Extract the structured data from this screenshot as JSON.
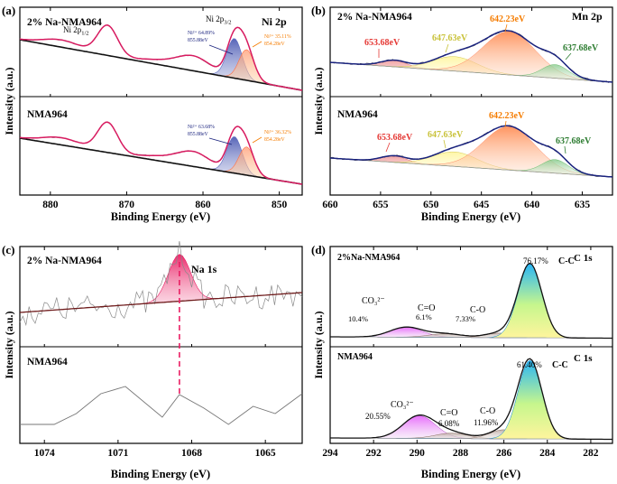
{
  "chart_data": [
    {
      "type": "line",
      "panel": "(a)",
      "title": "Ni 2p",
      "xlabel": "Binding Energy (eV)",
      "ylabel": "Intensity (a.u.)",
      "xlim": [
        884,
        847
      ],
      "xticks": [
        880,
        870,
        860,
        850
      ],
      "subplots": [
        {
          "sample": "2% Na-NMA964",
          "peak_labels": [
            {
              "text": "Ni 2p",
              "sub": "1/2",
              "x": 872.5
            },
            {
              "text": "Ni 2p",
              "sub": "3/2",
              "x": 855.6
            }
          ],
          "annotations": [
            {
              "line1": "Ni²⁺ 64.89%",
              "line2": "855.88eV",
              "color": "#1a237e"
            },
            {
              "line1": "Ni³⁺ 35.11%",
              "line2": "854.28eV",
              "color": "#f57c00"
            }
          ],
          "components": [
            {
              "name": "Ni²⁺",
              "center": 855.88,
              "color": "#7986cb"
            },
            {
              "name": "Ni³⁺",
              "center": 854.28,
              "color": "#ffb38a"
            }
          ]
        },
        {
          "sample": "NMA964",
          "annotations": [
            {
              "line1": "Ni²⁺ 63.68%",
              "line2": "855.88eV",
              "color": "#1a237e"
            },
            {
              "line1": "Ni³⁺ 36.32%",
              "line2": "854.28eV",
              "color": "#f57c00"
            }
          ],
          "components": [
            {
              "name": "Ni²⁺",
              "center": 855.88,
              "color": "#7986cb"
            },
            {
              "name": "Ni³⁺",
              "center": 854.28,
              "color": "#ffb38a"
            }
          ]
        }
      ]
    },
    {
      "type": "line",
      "panel": "(b)",
      "title": "Mn 2p",
      "xlabel": "Binding Energy (eV)",
      "ylabel": "Intensity (a.u.)",
      "xlim": [
        660,
        632
      ],
      "xticks": [
        660,
        655,
        650,
        645,
        640,
        635
      ],
      "subplots": [
        {
          "sample": "2% Na-NMA964",
          "components": [
            {
              "label": "653.68eV",
              "center": 653.68,
              "color": "#e53935"
            },
            {
              "label": "647.63eV",
              "center": 647.63,
              "color": "#c9c23a"
            },
            {
              "label": "642.23eV",
              "center": 642.23,
              "color": "#f57c00"
            },
            {
              "label": "637.68eV",
              "center": 637.68,
              "color": "#2e7d32"
            }
          ]
        },
        {
          "sample": "NMA964",
          "components": [
            {
              "label": "653.68eV",
              "center": 653.68,
              "color": "#e53935"
            },
            {
              "label": "647.63eV",
              "center": 647.63,
              "color": "#c9c23a"
            },
            {
              "label": "642.23eV",
              "center": 642.23,
              "color": "#f57c00"
            },
            {
              "label": "637.68eV",
              "center": 637.68,
              "color": "#2e7d32"
            }
          ]
        }
      ]
    },
    {
      "type": "line",
      "panel": "(c)",
      "xlabel": "Binding Energy (eV)",
      "ylabel": "Intensity (a.u.)",
      "xlim": [
        1075,
        1063.5
      ],
      "xticks": [
        1074,
        1071,
        1068,
        1065
      ],
      "subplots": [
        {
          "sample": "2% Na-NMA964",
          "peak_label": "Na 1s",
          "center": 1068.5
        },
        {
          "sample": "NMA964"
        }
      ]
    },
    {
      "type": "line",
      "panel": "(d)",
      "title": "C 1s",
      "xlabel": "Binding Energy (eV)",
      "ylabel": "Intensity (a.u.)",
      "xlim": [
        294,
        281
      ],
      "xticks": [
        294,
        292,
        290,
        288,
        286,
        284,
        282
      ],
      "subplots": [
        {
          "sample": "2%Na-NMA964",
          "components": [
            {
              "name": "CO₃²⁻",
              "percent": "10.4%",
              "center": 290.5
            },
            {
              "name": "C=O",
              "percent": "6.1%",
              "center": 288.7
            },
            {
              "name": "C-O",
              "percent": "7.33%",
              "center": 286.2
            },
            {
              "name": "C-C",
              "percent": "76.17%",
              "center": 284.8
            }
          ]
        },
        {
          "sample": "NMA964",
          "components": [
            {
              "name": "CO₃²⁻",
              "percent": "20.55%",
              "center": 289.9
            },
            {
              "name": "C=O",
              "percent": "6.08%",
              "center": 288.4
            },
            {
              "name": "C-O",
              "percent": "11.96%",
              "center": 286.0
            },
            {
              "name": "C-C",
              "percent": "61.40%",
              "center": 284.8
            }
          ]
        }
      ]
    }
  ],
  "colors": {
    "fit_line": "#d81b60",
    "baseline": "#111111",
    "raw_data": "#8a8a8a",
    "mn_fit": "#1a237e",
    "na_fill": "#e91e63",
    "c_fit": "#111111"
  }
}
